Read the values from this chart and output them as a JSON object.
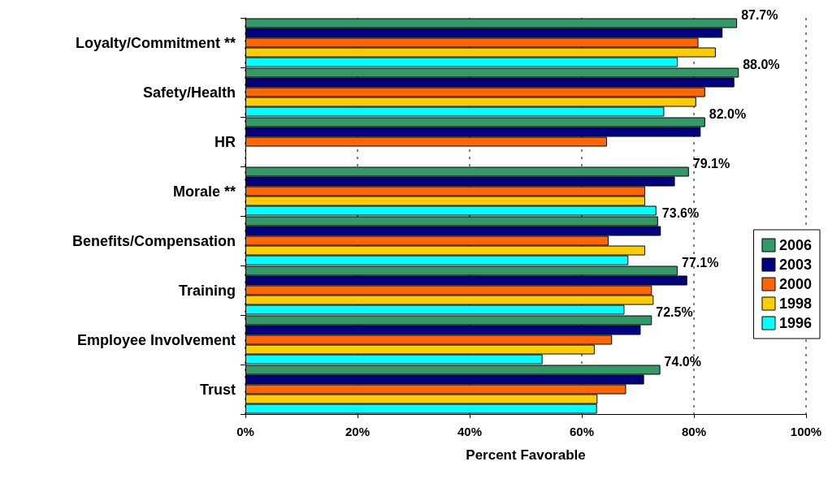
{
  "chart_data": {
    "type": "bar",
    "orientation": "horizontal",
    "xlabel": "Percent Favorable",
    "categories": [
      "Loyalty/Commitment **",
      "Safety/Health",
      "HR",
      "Morale **",
      "Benefits/Compensation",
      "Training",
      "Employee Involvement",
      "Trust"
    ],
    "series": [
      {
        "name": "2006",
        "color": "#339966",
        "values": [
          87.7,
          88.0,
          82.0,
          79.1,
          73.6,
          77.1,
          72.5,
          74.0
        ],
        "value_labels": [
          "87.7%",
          "88.0%",
          "82.0%",
          "79.1%",
          "73.6%",
          "77.1%",
          "72.5%",
          "74.0%"
        ]
      },
      {
        "name": "2003",
        "color": "#000080",
        "values": [
          85.1,
          87.2,
          81.2,
          76.6,
          74.1,
          78.8,
          70.5,
          71.1
        ]
      },
      {
        "name": "2000",
        "color": "#ff6600",
        "values": [
          80.8,
          82.0,
          64.5,
          71.3,
          64.8,
          72.5,
          65.4,
          67.9
        ]
      },
      {
        "name": "1998",
        "color": "#ffcc00",
        "values": [
          83.9,
          80.4,
          null,
          71.3,
          71.3,
          72.8,
          62.3,
          62.8
        ]
      },
      {
        "name": "1996",
        "color": "#00ffff",
        "values": [
          77.1,
          74.7,
          null,
          73.3,
          68.3,
          67.6,
          53.0,
          62.7
        ]
      }
    ],
    "xlim": [
      0,
      100
    ],
    "xticks": [
      {
        "value": 0,
        "label": "0%"
      },
      {
        "value": 20,
        "label": "20%"
      },
      {
        "value": 40,
        "label": "40%"
      },
      {
        "value": 60,
        "label": "60%"
      },
      {
        "value": 80,
        "label": "80%"
      },
      {
        "value": 100,
        "label": "100%"
      }
    ],
    "grid": "x",
    "legend": "right"
  }
}
